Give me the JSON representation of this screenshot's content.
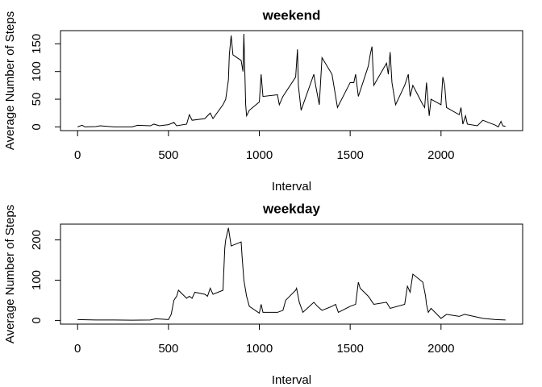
{
  "chart_data": [
    {
      "type": "line",
      "title": "weekend",
      "x_label": "Interval",
      "y_label": "Average Number of Steps",
      "color": "#000000",
      "x": [
        0,
        25,
        40,
        100,
        125,
        200,
        300,
        330,
        400,
        420,
        450,
        500,
        530,
        545,
        600,
        615,
        630,
        700,
        730,
        745,
        800,
        815,
        830,
        835,
        845,
        855,
        900,
        910,
        915,
        925,
        930,
        945,
        1000,
        1010,
        1020,
        1100,
        1110,
        1130,
        1200,
        1210,
        1215,
        1230,
        1300,
        1310,
        1330,
        1345,
        1400,
        1430,
        1500,
        1520,
        1530,
        1545,
        1600,
        1610,
        1620,
        1630,
        1700,
        1710,
        1720,
        1730,
        1750,
        1800,
        1820,
        1830,
        1845,
        1900,
        1910,
        1920,
        1935,
        1945,
        2000,
        2010,
        2020,
        2030,
        2100,
        2110,
        2120,
        2135,
        2145,
        2200,
        2230,
        2300,
        2315,
        2330,
        2340,
        2355
      ],
      "values": [
        0,
        3,
        0,
        0.5,
        2,
        0,
        0,
        3,
        2,
        5,
        2,
        4,
        8,
        2,
        5,
        22,
        12,
        15,
        25,
        15,
        40,
        50,
        85,
        130,
        165,
        130,
        120,
        100,
        168,
        40,
        20,
        30,
        45,
        95,
        55,
        58,
        40,
        55,
        90,
        140,
        75,
        30,
        95,
        75,
        40,
        125,
        95,
        35,
        80,
        80,
        95,
        55,
        110,
        130,
        145,
        75,
        115,
        95,
        135,
        80,
        40,
        75,
        95,
        55,
        75,
        40,
        35,
        80,
        20,
        50,
        40,
        90,
        75,
        35,
        22,
        35,
        5,
        20,
        5,
        2,
        12,
        3,
        0,
        10,
        2,
        1
      ],
      "xlim": [
        -94.2,
        2449.2
      ],
      "ylim": [
        -6.7,
        173.8
      ],
      "xticks": [
        0,
        500,
        1000,
        1500,
        2000
      ],
      "yticks": [
        0,
        50,
        100,
        150
      ]
    },
    {
      "type": "line",
      "title": "weekday",
      "x_label": "Interval",
      "y_label": "Average Number of Steps",
      "color": "#000000",
      "x": [
        0,
        100,
        200,
        300,
        400,
        430,
        500,
        515,
        530,
        545,
        555,
        600,
        615,
        630,
        645,
        700,
        715,
        730,
        745,
        800,
        810,
        815,
        830,
        835,
        845,
        900,
        905,
        915,
        930,
        945,
        1000,
        1010,
        1020,
        1100,
        1130,
        1145,
        1200,
        1205,
        1220,
        1240,
        1300,
        1320,
        1345,
        1400,
        1420,
        1435,
        1500,
        1530,
        1545,
        1555,
        1600,
        1630,
        1700,
        1720,
        1800,
        1815,
        1830,
        1845,
        1900,
        1915,
        1920,
        1930,
        1945,
        2000,
        2030,
        2100,
        2130,
        2200,
        2230,
        2300,
        2355
      ],
      "values": [
        2,
        1,
        1,
        0.5,
        1,
        4,
        2,
        15,
        50,
        60,
        75,
        55,
        60,
        55,
        70,
        65,
        60,
        80,
        65,
        75,
        180,
        200,
        230,
        215,
        185,
        195,
        160,
        100,
        60,
        35,
        18,
        40,
        20,
        20,
        25,
        50,
        75,
        80,
        45,
        20,
        45,
        35,
        25,
        35,
        40,
        20,
        35,
        40,
        95,
        80,
        60,
        40,
        45,
        30,
        40,
        85,
        70,
        115,
        95,
        60,
        40,
        20,
        30,
        5,
        15,
        10,
        15,
        8,
        5,
        2,
        1
      ],
      "xlim": [
        -94.2,
        2449.2
      ],
      "ylim": [
        -9.2,
        239.2
      ],
      "xticks": [
        0,
        500,
        1000,
        1500,
        2000
      ],
      "yticks": [
        0,
        100,
        200
      ]
    }
  ]
}
